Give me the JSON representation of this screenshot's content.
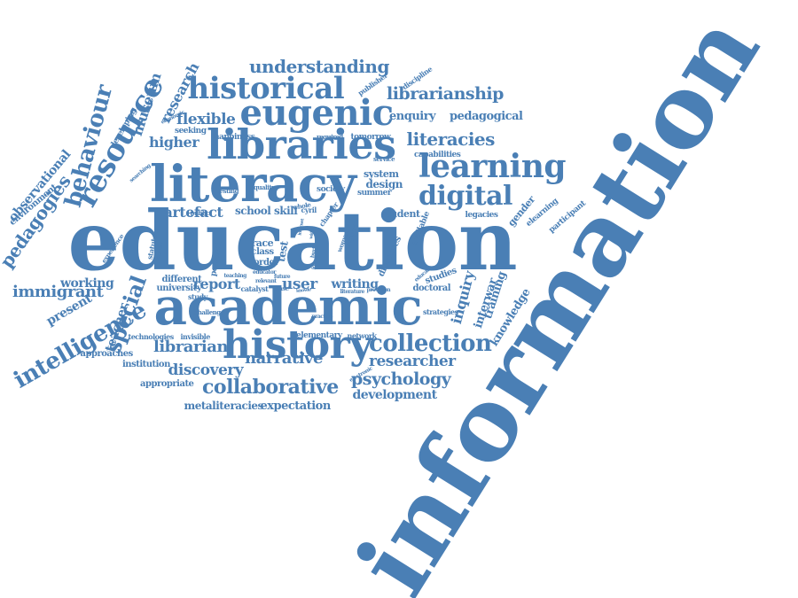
{
  "cloud": {
    "color": "#4a7fb5",
    "words": [
      {
        "text": "information",
        "weight": 100
      },
      {
        "text": "education",
        "weight": 95
      },
      {
        "text": "academic",
        "weight": 70
      },
      {
        "text": "literacy",
        "weight": 65
      },
      {
        "text": "libraries",
        "weight": 58
      },
      {
        "text": "history",
        "weight": 52
      },
      {
        "text": "learning",
        "weight": 46
      },
      {
        "text": "eugenic",
        "weight": 44
      },
      {
        "text": "historical",
        "weight": 42
      },
      {
        "text": "digital",
        "weight": 40
      },
      {
        "text": "resource",
        "weight": 40
      },
      {
        "text": "intelligence",
        "weight": 38
      },
      {
        "text": "collection",
        "weight": 34
      },
      {
        "text": "behaviour",
        "weight": 34
      },
      {
        "text": "collaborative",
        "weight": 32
      },
      {
        "text": "literacies",
        "weight": 28
      },
      {
        "text": "special",
        "weight": 28
      },
      {
        "text": "understanding",
        "weight": 26
      },
      {
        "text": "pedagogies",
        "weight": 26
      },
      {
        "text": "librarianship",
        "weight": 26
      },
      {
        "text": "librarian",
        "weight": 25
      },
      {
        "text": "psychology",
        "weight": 24
      },
      {
        "text": "immigrant",
        "weight": 24
      },
      {
        "text": "narrative",
        "weight": 24
      },
      {
        "text": "researcher",
        "weight": 23
      },
      {
        "text": "discovery",
        "weight": 23
      },
      {
        "text": "inquiry",
        "weight": 22
      },
      {
        "text": "user",
        "weight": 22
      },
      {
        "text": "flexible",
        "weight": 22
      },
      {
        "text": "museum",
        "weight": 20
      },
      {
        "text": "higher",
        "weight": 20
      },
      {
        "text": "research",
        "weight": 20
      },
      {
        "text": "observational",
        "weight": 19
      },
      {
        "text": "artefact",
        "weight": 18
      },
      {
        "text": "report",
        "weight": 18
      },
      {
        "text": "development",
        "weight": 17
      },
      {
        "text": "enquiry",
        "weight": 17
      },
      {
        "text": "pedagogical",
        "weight": 17
      },
      {
        "text": "expectation",
        "weight": 16
      },
      {
        "text": "metaliteracies",
        "weight": 16
      },
      {
        "text": "knowledge",
        "weight": 16
      },
      {
        "text": "interwar",
        "weight": 16
      },
      {
        "text": "training",
        "weight": 16
      },
      {
        "text": "writing",
        "weight": 16
      },
      {
        "text": "teacher",
        "weight": 15
      },
      {
        "text": "working",
        "weight": 15
      },
      {
        "text": "present",
        "weight": 15
      },
      {
        "text": "school",
        "weight": 14
      },
      {
        "text": "skill",
        "weight": 14
      },
      {
        "text": "design",
        "weight": 14
      },
      {
        "text": "system",
        "weight": 13
      },
      {
        "text": "student",
        "weight": 13
      },
      {
        "text": "gender",
        "weight": 13
      },
      {
        "text": "race",
        "weight": 13
      },
      {
        "text": "class",
        "weight": 12
      },
      {
        "text": "order",
        "weight": 12
      },
      {
        "text": "test",
        "weight": 12
      },
      {
        "text": "environment",
        "weight": 12
      },
      {
        "text": "approaches",
        "weight": 12
      },
      {
        "text": "institution",
        "weight": 12
      },
      {
        "text": "appropriate",
        "weight": 11
      },
      {
        "text": "elementary",
        "weight": 11
      },
      {
        "text": "university",
        "weight": 11
      },
      {
        "text": "different",
        "weight": 11
      },
      {
        "text": "studies",
        "weight": 11
      },
      {
        "text": "doctoral",
        "weight": 11
      },
      {
        "text": "discusses",
        "weight": 10
      },
      {
        "text": "capabilities",
        "weight": 10
      },
      {
        "text": "legacies",
        "weight": 10
      },
      {
        "text": "participant",
        "weight": 10
      },
      {
        "text": "elearning",
        "weight": 10
      },
      {
        "text": "available",
        "weight": 10
      },
      {
        "text": "happiness",
        "weight": 10
      },
      {
        "text": "tomorrow",
        "weight": 10
      },
      {
        "text": "seeking",
        "weight": 10
      },
      {
        "text": "developing",
        "weight": 10
      },
      {
        "text": "society",
        "weight": 10
      },
      {
        "text": "summer",
        "weight": 10
      },
      {
        "text": "publisher",
        "weight": 9
      },
      {
        "text": "discipline",
        "weight": 9
      },
      {
        "text": "technologies",
        "weight": 9
      },
      {
        "text": "invisible",
        "weight": 9
      },
      {
        "text": "network",
        "weight": 9
      },
      {
        "text": "personal",
        "weight": 9
      },
      {
        "text": "study",
        "weight": 9
      },
      {
        "text": "public",
        "weight": 9
      },
      {
        "text": "testing",
        "weight": 9
      },
      {
        "text": "cyril",
        "weight": 9
      },
      {
        "text": "strategies",
        "weight": 9
      },
      {
        "text": "required",
        "weight": 9
      },
      {
        "text": "catalyst",
        "weight": 9
      },
      {
        "text": "challenge",
        "weight": 8
      },
      {
        "text": "statutory",
        "weight": 8
      },
      {
        "text": "economic",
        "weight": 8
      },
      {
        "text": "quality",
        "weight": 8
      },
      {
        "text": "whole",
        "weight": 8
      },
      {
        "text": "chapter",
        "weight": 8
      },
      {
        "text": "experience",
        "weight": 7
      },
      {
        "text": "searching",
        "weight": 7
      },
      {
        "text": "service",
        "weight": 7
      },
      {
        "text": "electronic",
        "weight": 7
      },
      {
        "text": "practice",
        "weight": 7
      },
      {
        "text": "literature",
        "weight": 7
      },
      {
        "text": "provision",
        "weight": 7
      },
      {
        "text": "educate",
        "weight": 7
      },
      {
        "text": "women",
        "weight": 7
      },
      {
        "text": "support",
        "weight": 7
      },
      {
        "text": "burt",
        "weight": 7
      },
      {
        "text": "case",
        "weight": 7
      },
      {
        "text": "future",
        "weight": 6
      },
      {
        "text": "teaching",
        "weight": 6
      },
      {
        "text": "educator",
        "weight": 6
      },
      {
        "text": "relevant",
        "weight": 6
      },
      {
        "text": "interview",
        "weight": 6
      },
      {
        "text": "ideas",
        "weight": 6
      },
      {
        "text": "internet",
        "weight": 6
      },
      {
        "text": "wide",
        "weight": 6
      },
      {
        "text": "knowle",
        "weight": 6
      }
    ]
  }
}
